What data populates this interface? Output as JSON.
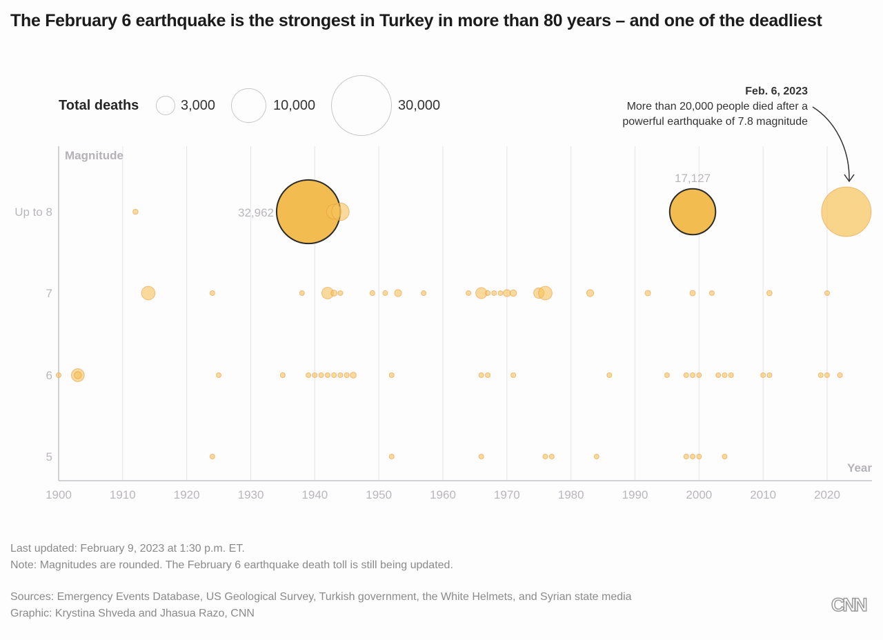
{
  "title": "The February 6 earthquake is the strongest in Turkey in more than 80 years – and one of the deadliest",
  "legend": {
    "title": "Total deaths",
    "items": [
      {
        "label": "3,000",
        "value": 3000
      },
      {
        "label": "10,000",
        "value": 10000
      },
      {
        "label": "30,000",
        "value": 30000
      }
    ]
  },
  "annotation": {
    "date": "Feb. 6, 2023",
    "line1": "More than 20,000 people died after a",
    "line2": "powerful earthquake of 7.8 magnitude"
  },
  "colors": {
    "bubble_fill": "#f5c35a",
    "bubble_stroke": "#e89a3c",
    "highlight_stroke": "#2b2b2b",
    "grid": "#e8e6ea",
    "axis": "#c4c2c6",
    "axis_text": "#b9b6bb"
  },
  "chart_data": {
    "type": "scatter",
    "title": "The February 6 earthquake is the strongest in Turkey in more than 80 years – and one of the deadliest",
    "xlabel": "Year",
    "ylabel": "Magnitude",
    "xlim": [
      1900,
      2027
    ],
    "x_ticks": [
      1900,
      1910,
      1920,
      1930,
      1940,
      1950,
      1960,
      1970,
      1980,
      1990,
      2000,
      2010,
      2020
    ],
    "y_categories": [
      {
        "label": "Up to 8",
        "value": 8
      },
      {
        "label": "7",
        "value": 7
      },
      {
        "label": "6",
        "value": 6
      },
      {
        "label": "5",
        "value": 5
      }
    ],
    "size_encoding": "Total deaths",
    "grid": true,
    "labels": [
      {
        "text": "32,962",
        "year": 1939,
        "magnitude": 8
      },
      {
        "text": "17,127",
        "year": 1999,
        "magnitude": 8
      }
    ],
    "points": [
      {
        "year": 1912,
        "magnitude": 8,
        "deaths": 220
      },
      {
        "year": 1939,
        "magnitude": 8,
        "deaths": 32962,
        "highlight": true
      },
      {
        "year": 1943,
        "magnitude": 8,
        "deaths": 1800
      },
      {
        "year": 1944,
        "magnitude": 8,
        "deaths": 2500
      },
      {
        "year": 1999,
        "magnitude": 8,
        "deaths": 17127,
        "highlight": true
      },
      {
        "year": 2023,
        "magnitude": 8,
        "deaths": 20000,
        "annotated": true
      },
      {
        "year": 1914,
        "magnitude": 7,
        "deaths": 1500
      },
      {
        "year": 1924,
        "magnitude": 7,
        "deaths": 60
      },
      {
        "year": 1938,
        "magnitude": 7,
        "deaths": 130
      },
      {
        "year": 1942,
        "magnitude": 7,
        "deaths": 1100
      },
      {
        "year": 1943,
        "magnitude": 7,
        "deaths": 300
      },
      {
        "year": 1944,
        "magnitude": 7,
        "deaths": 100
      },
      {
        "year": 1949,
        "magnitude": 7,
        "deaths": 200
      },
      {
        "year": 1951,
        "magnitude": 7,
        "deaths": 90
      },
      {
        "year": 1953,
        "magnitude": 7,
        "deaths": 400
      },
      {
        "year": 1957,
        "magnitude": 7,
        "deaths": 80
      },
      {
        "year": 1964,
        "magnitude": 7,
        "deaths": 90
      },
      {
        "year": 1966,
        "magnitude": 7,
        "deaths": 1000
      },
      {
        "year": 1967,
        "magnitude": 7,
        "deaths": 200
      },
      {
        "year": 1968,
        "magnitude": 7,
        "deaths": 100
      },
      {
        "year": 1969,
        "magnitude": 7,
        "deaths": 80
      },
      {
        "year": 1970,
        "magnitude": 7,
        "deaths": 400
      },
      {
        "year": 1971,
        "magnitude": 7,
        "deaths": 350
      },
      {
        "year": 1975,
        "magnitude": 7,
        "deaths": 900
      },
      {
        "year": 1976,
        "magnitude": 7,
        "deaths": 1500
      },
      {
        "year": 1983,
        "magnitude": 7,
        "deaths": 400
      },
      {
        "year": 1992,
        "magnitude": 7,
        "deaths": 250
      },
      {
        "year": 1999,
        "magnitude": 7,
        "deaths": 250
      },
      {
        "year": 2002,
        "magnitude": 7,
        "deaths": 60
      },
      {
        "year": 2011,
        "magnitude": 7,
        "deaths": 230
      },
      {
        "year": 2020,
        "magnitude": 7,
        "deaths": 110
      },
      {
        "year": 1900,
        "magnitude": 6,
        "deaths": 120
      },
      {
        "year": 1903,
        "magnitude": 6,
        "deaths": 1350
      },
      {
        "year": 1903,
        "magnitude": 6,
        "deaths": 400
      },
      {
        "year": 1925,
        "magnitude": 6,
        "deaths": 90
      },
      {
        "year": 1935,
        "magnitude": 6,
        "deaths": 200
      },
      {
        "year": 1939,
        "magnitude": 6,
        "deaths": 60
      },
      {
        "year": 1940,
        "magnitude": 6,
        "deaths": 60
      },
      {
        "year": 1941,
        "magnitude": 6,
        "deaths": 150
      },
      {
        "year": 1942,
        "magnitude": 6,
        "deaths": 60
      },
      {
        "year": 1943,
        "magnitude": 6,
        "deaths": 140
      },
      {
        "year": 1944,
        "magnitude": 6,
        "deaths": 60
      },
      {
        "year": 1945,
        "magnitude": 6,
        "deaths": 130
      },
      {
        "year": 1946,
        "magnitude": 6,
        "deaths": 300
      },
      {
        "year": 1952,
        "magnitude": 6,
        "deaths": 90
      },
      {
        "year": 1966,
        "magnitude": 6,
        "deaths": 70
      },
      {
        "year": 1967,
        "magnitude": 6,
        "deaths": 90
      },
      {
        "year": 1971,
        "magnitude": 6,
        "deaths": 70
      },
      {
        "year": 1986,
        "magnitude": 6,
        "deaths": 60
      },
      {
        "year": 1995,
        "magnitude": 6,
        "deaths": 90
      },
      {
        "year": 1998,
        "magnitude": 6,
        "deaths": 120
      },
      {
        "year": 1999,
        "magnitude": 6,
        "deaths": 80
      },
      {
        "year": 2000,
        "magnitude": 6,
        "deaths": 70
      },
      {
        "year": 2003,
        "magnitude": 6,
        "deaths": 170
      },
      {
        "year": 2004,
        "magnitude": 6,
        "deaths": 70
      },
      {
        "year": 2005,
        "magnitude": 6,
        "deaths": 70
      },
      {
        "year": 2010,
        "magnitude": 6,
        "deaths": 80
      },
      {
        "year": 2011,
        "magnitude": 6,
        "deaths": 80
      },
      {
        "year": 2019,
        "magnitude": 6,
        "deaths": 70
      },
      {
        "year": 2020,
        "magnitude": 6,
        "deaths": 70
      },
      {
        "year": 2022,
        "magnitude": 6,
        "deaths": 50
      },
      {
        "year": 1924,
        "magnitude": 5,
        "deaths": 60
      },
      {
        "year": 1952,
        "magnitude": 5,
        "deaths": 60
      },
      {
        "year": 1966,
        "magnitude": 5,
        "deaths": 60
      },
      {
        "year": 1976,
        "magnitude": 5,
        "deaths": 60
      },
      {
        "year": 1977,
        "magnitude": 5,
        "deaths": 60
      },
      {
        "year": 1984,
        "magnitude": 5,
        "deaths": 60
      },
      {
        "year": 1998,
        "magnitude": 5,
        "deaths": 60
      },
      {
        "year": 1999,
        "magnitude": 5,
        "deaths": 60
      },
      {
        "year": 2000,
        "magnitude": 5,
        "deaths": 60
      },
      {
        "year": 2004,
        "magnitude": 5,
        "deaths": 60
      }
    ]
  },
  "footer": {
    "updated": "Last updated: February 9, 2023 at 1:30 p.m. ET.",
    "note": "Note: Magnitudes are rounded. The February 6 earthquake death toll is still being updated.",
    "sources": "Sources: Emergency Events Database, US Geological Survey, Turkish government, the White Helmets, and Syrian state media",
    "credit": "Graphic: Krystina Shveda and Jhasua Razo, CNN",
    "logo": "CNN"
  }
}
